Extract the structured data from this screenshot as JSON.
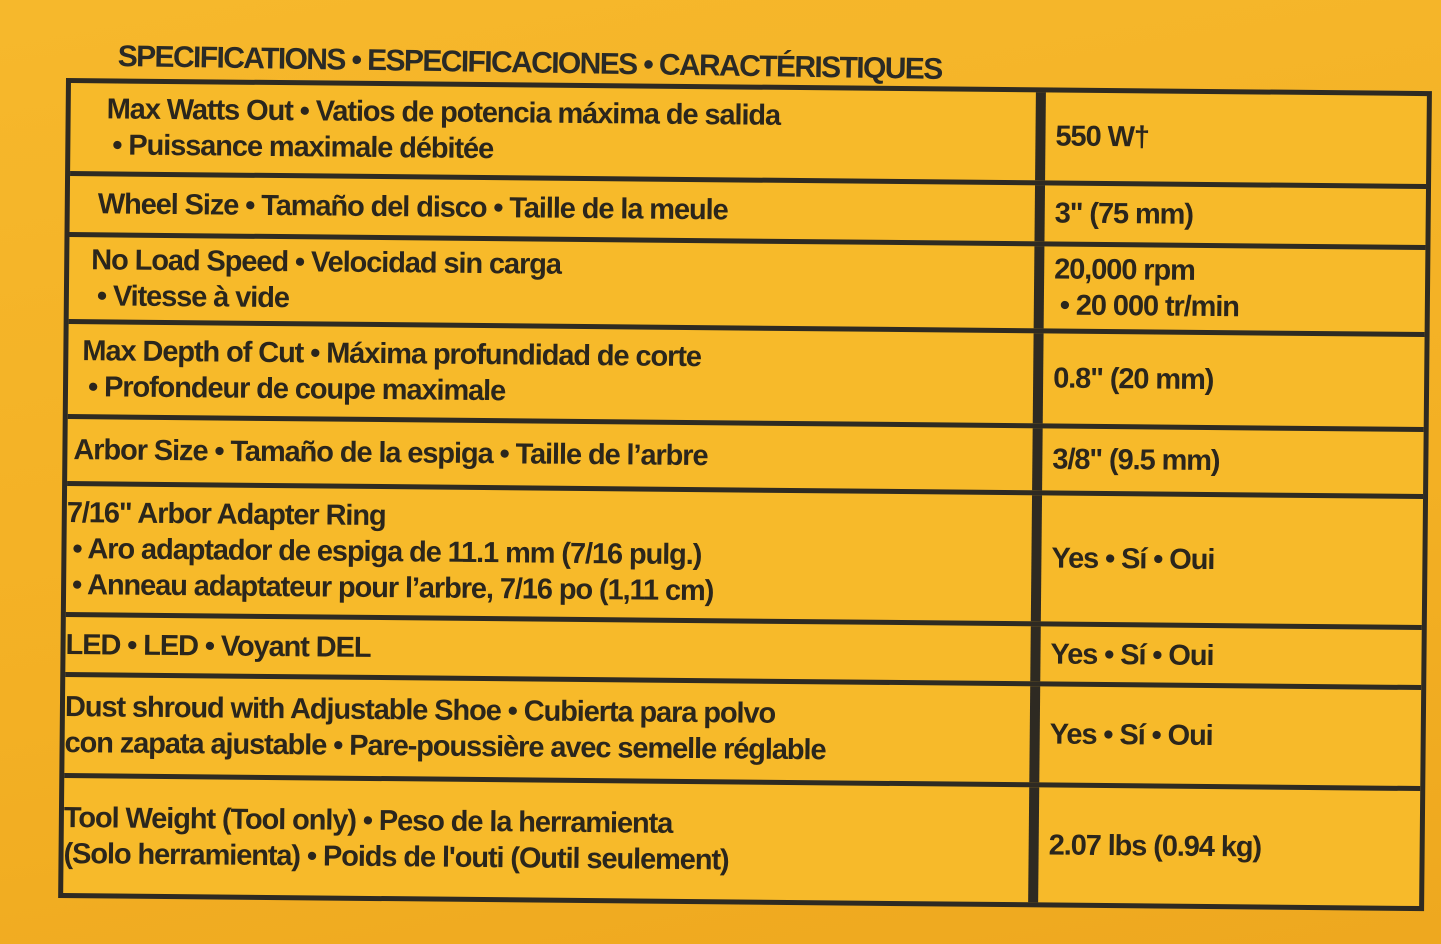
{
  "title": "SPECIFICATIONS • ESPECIFICACIONES • CARACTÉRISTIQUES",
  "rows": [
    {
      "label": [
        "Max Watts Out • Vatios de potencia máxima de salida",
        "• Puissance maximale débitée"
      ],
      "value": [
        "550 W†"
      ]
    },
    {
      "label": [
        "Wheel Size • Tamaño del disco • Taille de la meule"
      ],
      "value": [
        "3\" (75 mm)"
      ]
    },
    {
      "label": [
        "No Load Speed • Velocidad sin carga",
        "• Vitesse à vide"
      ],
      "value": [
        "20,000 rpm",
        "• 20 000 tr/min"
      ]
    },
    {
      "label": [
        "Max Depth of Cut • Máxima profundidad de corte",
        "• Profondeur de coupe maximale"
      ],
      "value": [
        "0.8\" (20 mm)"
      ]
    },
    {
      "label": [
        "Arbor Size • Tamaño de la espiga • Taille de l’arbre"
      ],
      "value": [
        "3/8\" (9.5 mm)"
      ]
    },
    {
      "label": [
        "7/16\" Arbor Adapter Ring",
        "• Aro adaptador de espiga de 11.1 mm (7/16 pulg.)",
        "• Anneau adaptateur pour l’arbre, 7/16 po (1,11 cm)"
      ],
      "value": [
        "Yes • Sí • Oui"
      ]
    },
    {
      "label": [
        "LED • LED • Voyant DEL"
      ],
      "value": [
        "Yes • Sí • Oui"
      ]
    },
    {
      "label": [
        "Dust shroud with Adjustable Shoe • Cubierta para polvo",
        "con zapata ajustable • Pare-poussière avec semelle réglable"
      ],
      "value": [
        "Yes • Sí • Oui"
      ]
    },
    {
      "label": [
        "Tool Weight (Tool only) • Peso de la herramienta",
        "(Solo herramienta) • Poids de l'outi (Outil seulement)"
      ],
      "value": [
        "2.07 lbs (0.94 kg)"
      ]
    }
  ]
}
